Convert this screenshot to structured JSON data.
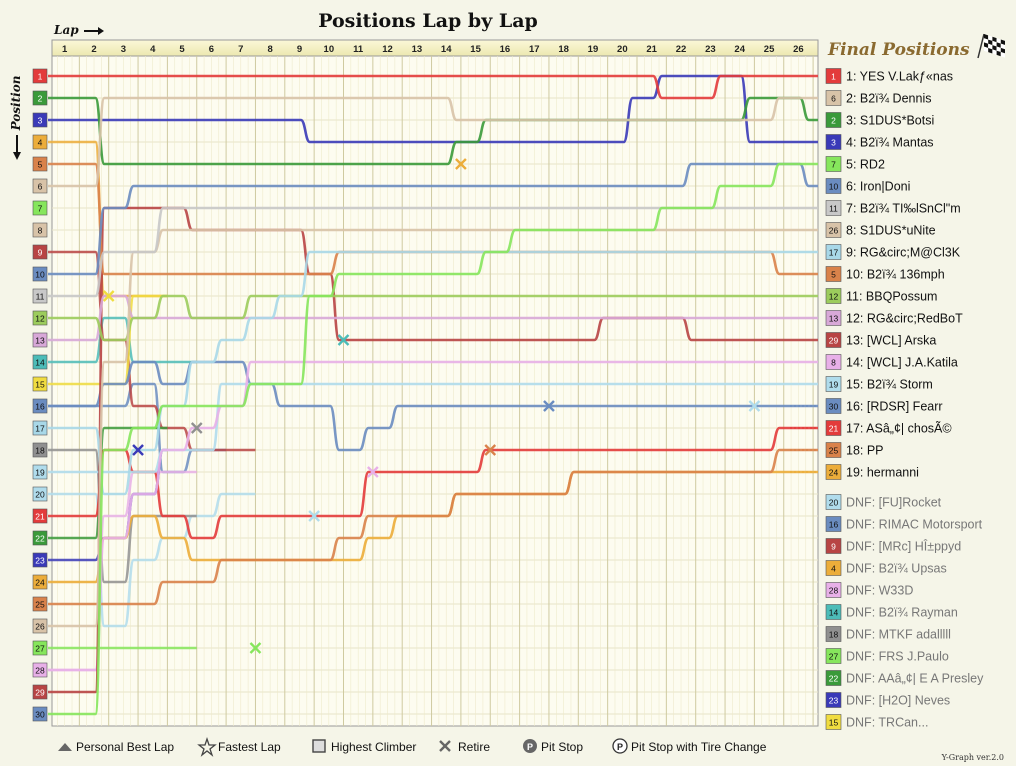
{
  "title": "Positions Lap by Lap",
  "axis": {
    "x_label": "Lap",
    "y_label": "Position"
  },
  "final_title": "Final Positions",
  "version": "Y-Graph ver.2.0",
  "legend": [
    {
      "id": "personal-best",
      "label": "Personal Best Lap"
    },
    {
      "id": "fastest-lap",
      "label": "Fastest Lap"
    },
    {
      "id": "highest-climber",
      "label": "Highest Climber"
    },
    {
      "id": "retire",
      "label": "Retire"
    },
    {
      "id": "pit-stop",
      "label": "Pit Stop"
    },
    {
      "id": "pit-tire",
      "label": "Pit Stop with Tire Change"
    }
  ],
  "chart_data": {
    "type": "line",
    "laps": [
      1,
      2,
      3,
      4,
      5,
      6,
      7,
      8,
      9,
      10,
      11,
      12,
      13,
      14,
      15,
      16,
      17,
      18,
      19,
      20,
      21,
      22,
      23,
      24,
      25,
      26
    ],
    "start_positions": [
      1,
      2,
      3,
      4,
      5,
      6,
      7,
      8,
      9,
      10,
      11,
      12,
      13,
      14,
      15,
      16,
      17,
      18,
      19,
      20,
      21,
      22,
      23,
      24,
      25,
      26,
      27,
      28,
      29,
      30
    ],
    "start_colors": [
      "#e33b3b",
      "#3a9a3a",
      "#3a3ab8",
      "#ecad3a",
      "#d9824a",
      "#d8c3a8",
      "#86e65c",
      "#d8c3a8",
      "#b84444",
      "#6a8cc0",
      "#c8c8c8",
      "#9ccc5c",
      "#d8a8d8",
      "#4cbcb8",
      "#f0dc40",
      "#6a8cc0",
      "#a8d8e8",
      "#909090",
      "#b0dcec",
      "#b0dcec",
      "#e33b3b",
      "#3a9a3a",
      "#3a3ab8",
      "#ecad3a",
      "#d9824a",
      "#d8c3a8",
      "#86e65c",
      "#e8b0e8",
      "#b84444",
      "#6a8cc0"
    ],
    "series": [
      {
        "name": "1: YES V.Lakƒ«nas",
        "num": "1",
        "color": "#e33b3b",
        "positions": [
          1,
          1,
          1,
          1,
          1,
          1,
          1,
          1,
          1,
          1,
          1,
          1,
          1,
          1,
          1,
          1,
          1,
          1,
          1,
          1,
          2,
          2,
          1,
          1,
          1,
          1
        ]
      },
      {
        "name": "2: B2ï¾ Dennis",
        "num": "6",
        "color": "#d8c3a8",
        "positions": [
          6,
          2,
          2,
          2,
          2,
          2,
          2,
          2,
          2,
          2,
          2,
          2,
          2,
          3,
          3,
          3,
          3,
          3,
          3,
          3,
          3,
          3,
          3,
          3,
          2,
          2
        ]
      },
      {
        "name": "3: S1DUS*Botsi",
        "num": "2",
        "color": "#3a9a3a",
        "positions": [
          2,
          5,
          5,
          5,
          5,
          5,
          5,
          5,
          5,
          5,
          5,
          5,
          5,
          4,
          3,
          3,
          3,
          3,
          3,
          3,
          3,
          3,
          3,
          2,
          2,
          3
        ]
      },
      {
        "name": "4: B2ï¾ Mantas",
        "num": "3",
        "color": "#3a3ab8",
        "positions": [
          3,
          3,
          3,
          3,
          3,
          3,
          3,
          3,
          4,
          4,
          4,
          4,
          4,
          4,
          4,
          4,
          4,
          4,
          4,
          2,
          1,
          1,
          1,
          4,
          4,
          4
        ]
      },
      {
        "name": "5: RD2",
        "num": "7",
        "color": "#86e65c",
        "positions": [
          30,
          18,
          17,
          16,
          16,
          16,
          15,
          15,
          11,
          10,
          10,
          10,
          10,
          10,
          9,
          8,
          8,
          8,
          8,
          8,
          7,
          7,
          6,
          6,
          5,
          5
        ]
      },
      {
        "name": "6: Iron|Doni",
        "num": "10",
        "color": "#6a8cc0",
        "positions": [
          10,
          7,
          6,
          6,
          6,
          6,
          6,
          6,
          6,
          6,
          6,
          6,
          6,
          6,
          6,
          6,
          6,
          6,
          6,
          6,
          6,
          5,
          5,
          5,
          5,
          6
        ]
      },
      {
        "name": "7: B2ï¾ TI‰lSnCl\"m",
        "num": "11",
        "color": "#c8c8c8",
        "positions": [
          11,
          9,
          9,
          7,
          7,
          7,
          7,
          7,
          7,
          7,
          7,
          7,
          7,
          7,
          7,
          7,
          7,
          7,
          7,
          7,
          7,
          7,
          7,
          7,
          7,
          7
        ]
      },
      {
        "name": "8: S1DUS*uNite",
        "num": "26",
        "color": "#d8c3a8",
        "positions": [
          26,
          14,
          9,
          8,
          8,
          8,
          8,
          8,
          8,
          8,
          8,
          8,
          8,
          8,
          8,
          8,
          8,
          8,
          8,
          8,
          8,
          8,
          8,
          8,
          8,
          8
        ]
      },
      {
        "name": "9: RG&circ;M@Cl3K",
        "num": "17",
        "color": "#a8d8e8",
        "positions": [
          17,
          20,
          18,
          16,
          14,
          13,
          12,
          11,
          9,
          9,
          9,
          9,
          9,
          9,
          9,
          9,
          9,
          9,
          9,
          9,
          9,
          9,
          9,
          9,
          9,
          9
        ]
      },
      {
        "name": "10: B2ï¾ 136mph",
        "num": "5",
        "color": "#d9824a",
        "positions": [
          5,
          10,
          10,
          10,
          10,
          10,
          10,
          10,
          10,
          9,
          9,
          9,
          9,
          9,
          9,
          9,
          9,
          9,
          9,
          9,
          9,
          9,
          9,
          9,
          10,
          10
        ]
      },
      {
        "name": "11: BBQPossum",
        "num": "12",
        "color": "#9ccc5c",
        "positions": [
          12,
          13,
          12,
          11,
          12,
          12,
          11,
          11,
          11,
          11,
          11,
          11,
          11,
          11,
          11,
          11,
          11,
          11,
          11,
          11,
          11,
          11,
          11,
          11,
          11,
          11
        ]
      },
      {
        "name": "12: RG&circ;RedBoT",
        "num": "13",
        "color": "#d8a8d8",
        "positions": [
          13,
          11,
          12,
          12,
          12,
          12,
          12,
          12,
          12,
          12,
          12,
          12,
          12,
          12,
          12,
          12,
          12,
          12,
          12,
          12,
          12,
          12,
          12,
          12,
          12,
          12
        ]
      },
      {
        "name": "13: [WCL] Arska",
        "num": "29",
        "color": "#b84444",
        "positions": [
          29,
          7,
          7,
          7,
          8,
          8,
          8,
          8,
          10,
          13,
          13,
          13,
          13,
          13,
          13,
          13,
          13,
          13,
          12,
          12,
          12,
          13,
          13,
          13,
          13,
          13
        ]
      },
      {
        "name": "14: [WCL] J.A.Katila",
        "num": "8",
        "color": "#e8b0e8",
        "positions": [
          28,
          22,
          20,
          18,
          17,
          16,
          14,
          14,
          14,
          14,
          14,
          14,
          14,
          14,
          14,
          14,
          14,
          14,
          14,
          14,
          14,
          14,
          14,
          14,
          14,
          14
        ]
      },
      {
        "name": "15: B2ï¾ Storm",
        "num": "19",
        "color": "#b0dcec",
        "positions": [
          19,
          19,
          19,
          18,
          18,
          15,
          15,
          15,
          15,
          15,
          15,
          15,
          15,
          15,
          15,
          15,
          15,
          15,
          15,
          15,
          15,
          15,
          15,
          15,
          15,
          15
        ]
      },
      {
        "name": "16: [RDSR] Fearr",
        "num": "30",
        "color": "#6a8cc0",
        "positions": [
          16,
          15,
          14,
          15,
          14,
          14,
          15,
          16,
          16,
          18,
          17,
          16,
          16,
          16,
          16,
          16,
          16,
          16,
          16,
          16,
          16,
          16,
          16,
          16,
          16,
          16
        ]
      },
      {
        "name": "17: ASâ„¢| chosÃ©",
        "num": "21",
        "color": "#e33b3b",
        "positions": [
          21,
          18,
          19,
          21,
          22,
          21,
          21,
          21,
          21,
          21,
          19,
          19,
          19,
          19,
          18,
          18,
          18,
          18,
          18,
          18,
          18,
          18,
          18,
          18,
          17,
          17
        ]
      },
      {
        "name": "18: PP",
        "num": "25",
        "color": "#d9824a",
        "positions": [
          25,
          25,
          25,
          24,
          24,
          23,
          23,
          23,
          23,
          22,
          21,
          21,
          21,
          20,
          20,
          20,
          20,
          19,
          19,
          19,
          19,
          19,
          19,
          19,
          18,
          18
        ]
      },
      {
        "name": "19: hermanni",
        "num": "24",
        "color": "#ecad3a",
        "positions": [
          24,
          22,
          21,
          22,
          23,
          23,
          23,
          23,
          23,
          23,
          22,
          21,
          21,
          20,
          20,
          20,
          20,
          19,
          19,
          19,
          19,
          19,
          19,
          19,
          19,
          19
        ]
      }
    ],
    "dnf": [
      {
        "name": "DNF: [FU]Rocket",
        "num": "20",
        "color": "#b0dcec"
      },
      {
        "name": "DNF: RIMAC Motorsport",
        "num": "16",
        "color": "#6a8cc0"
      },
      {
        "name": "DNF: [MRc] HÎ±ppyd",
        "num": "9",
        "color": "#b84444"
      },
      {
        "name": "DNF: B2ï¾ Upsas",
        "num": "4",
        "color": "#ecad3a"
      },
      {
        "name": "DNF: W33D",
        "num": "28",
        "color": "#e8b0e8"
      },
      {
        "name": "DNF: B2ï¾ Rayman",
        "num": "14",
        "color": "#4cbcb8"
      },
      {
        "name": "DNF: MTKF adalllll",
        "num": "18",
        "color": "#909090"
      },
      {
        "name": "DNF: FRS J.Paulo",
        "num": "27",
        "color": "#86e65c"
      },
      {
        "name": "DNF: AAâ„¢| E A Presley",
        "num": "22",
        "color": "#3a9a3a"
      },
      {
        "name": "DNF: [H2O] Neves",
        "num": "23",
        "color": "#3a3ab8"
      },
      {
        "name": "DNF: TRCan...",
        "num": "15",
        "color": "#f0dc40"
      }
    ],
    "dnf_paths": [
      {
        "num": "20",
        "color": "#b0dcec",
        "positions": [
          20,
          26,
          23,
          22,
          21,
          20,
          20
        ],
        "retire_lap": 10,
        "retire_pos": 20
      },
      {
        "num": "16",
        "color": "#6a8cc0",
        "positions": [
          16,
          16,
          15,
          19,
          18,
          18
        ],
        "retire_lap": 16,
        "retire_pos": 18
      },
      {
        "num": "9",
        "color": "#b84444",
        "positions": [
          9,
          13,
          16,
          17,
          18,
          18,
          18
        ],
        "retire_lap": 12,
        "retire_pos": 19
      },
      {
        "num": "4",
        "color": "#ecad3a",
        "positions": [
          4,
          11,
          11,
          11
        ],
        "retire_lap": 4,
        "retire_pos": 11
      },
      {
        "num": "28",
        "color": "#e8b0e8",
        "positions": [
          28,
          21,
          19,
          19,
          19
        ],
        "retire_lap": 11,
        "retire_pos": 19
      },
      {
        "num": "14",
        "color": "#4cbcb8",
        "positions": [
          14,
          12,
          14,
          14,
          14
        ],
        "retire_lap": 10,
        "retire_pos": 13
      },
      {
        "num": "18",
        "color": "#909090",
        "positions": [
          18,
          24,
          21,
          21,
          21
        ],
        "retire_lap": 4,
        "retire_pos": 18
      },
      {
        "num": "27",
        "color": "#86e65c",
        "positions": [
          27,
          27,
          27,
          27,
          27
        ],
        "retire_lap": 7,
        "retire_pos": 27
      },
      {
        "num": "22",
        "color": "#3a9a3a",
        "positions": [
          22,
          17,
          17,
          17
        ],
        "retire_lap": 5,
        "retire_pos": 17
      },
      {
        "num": "23",
        "color": "#3a3ab8",
        "positions": [
          23,
          22,
          20,
          18
        ],
        "retire_lap": 3,
        "retire_pos": 18
      },
      {
        "num": "15",
        "color": "#f0dc40",
        "positions": [
          15,
          15,
          11,
          11
        ],
        "retire_lap": 2,
        "retire_pos": 11
      }
    ],
    "retire_markers": [
      {
        "lap": 14,
        "pos": 5,
        "color": "#ecad3a"
      },
      {
        "lap": 2,
        "pos": 11,
        "color": "#f0dc40"
      },
      {
        "lap": 10,
        "pos": 13,
        "color": "#4cbcb8"
      },
      {
        "lap": 17,
        "pos": 16,
        "color": "#6a8cc0"
      },
      {
        "lap": 5,
        "pos": 17,
        "color": "#909090"
      },
      {
        "lap": 3,
        "pos": 18,
        "color": "#3a3ab8"
      },
      {
        "lap": 15,
        "pos": 18,
        "color": "#d9824a"
      },
      {
        "lap": 11,
        "pos": 19,
        "color": "#e8b0e8"
      },
      {
        "lap": 9,
        "pos": 21,
        "color": "#b0dcec"
      },
      {
        "lap": 7,
        "pos": 27,
        "color": "#86e65c"
      },
      {
        "lap": 24,
        "pos": 16,
        "color": "#b0dcec"
      }
    ]
  }
}
